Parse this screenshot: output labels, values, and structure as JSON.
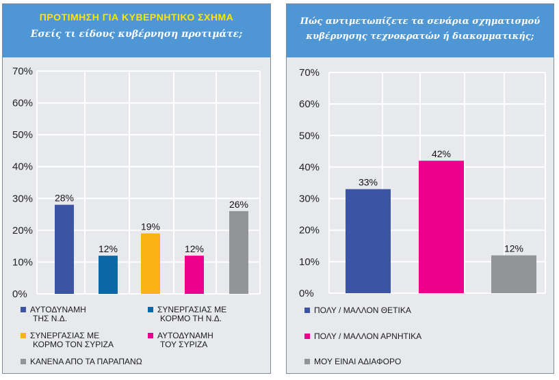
{
  "chart_data": [
    {
      "type": "bar",
      "title": "ΠΡΟΤΙΜΗΣΗ ΓΙΑ ΚΥΒΕΡΝΗΤΙΚΟ ΣΧΗΜΑ",
      "subtitle": "Εσείς τι είδους κυβέρνηση προτιμάτε;",
      "yticks": [
        "0%",
        "10%",
        "20%",
        "30%",
        "40%",
        "50%",
        "60%",
        "70%"
      ],
      "ylim": [
        0,
        70
      ],
      "grid": true,
      "legend": "bottom",
      "categories": [
        {
          "line1": "ΑΥΤΟΔΥΝΑΜΗ",
          "line2": "ΤΗΣ Ν.Δ."
        },
        {
          "line1": "ΣΥΝΕΡΓΑΣΙΑΣ ΜΕ",
          "line2": "ΚΟΡΜΟ ΤΗ Ν.Δ."
        },
        {
          "line1": "ΣΥΝΕΡΓΑΣΙΑΣ ΜΕ",
          "line2": "ΚΟΡΜΟ ΤΟΝ ΣΥΡΙΖΑ"
        },
        {
          "line1": "ΑΥΤΟΔΥΝΑΜΗ",
          "line2": "ΤΟΥ ΣΥΡΙΖΑ"
        },
        {
          "line1": "ΚΑΝΕΝΑ ΑΠΟ ΤΑ ΠΑΡΑΠΑΝΩ",
          "line2": ""
        }
      ],
      "values": [
        28,
        12,
        19,
        12,
        26
      ],
      "value_labels": [
        "28%",
        "12%",
        "19%",
        "12%",
        "26%"
      ],
      "colors": [
        "#3b55a4",
        "#0c67a6",
        "#fbb217",
        "#ec008c",
        "#929497"
      ]
    },
    {
      "type": "bar",
      "title_line1": "Πώς αντιμετωπίζετε τα σενάρια σχηματισμού",
      "title_line2": "κυβέρνησης τεχνοκρατών ή διακομματικής;",
      "yticks": [
        "0%",
        "10%",
        "20%",
        "30%",
        "40%",
        "50%",
        "60%",
        "70%"
      ],
      "ylim": [
        0,
        70
      ],
      "grid": true,
      "legend": "bottom",
      "categories": [
        {
          "line1": "ΠΟΛΥ / ΜΑΛΛΟΝ ΘΕΤΙΚΑ"
        },
        {
          "line1": "ΠΟΛΥ / ΜΑΛΛΟΝ ΑΡΝΗΤΙΚΑ"
        },
        {
          "line1": "ΜΟΥ ΕΙΝΑΙ ΑΔΙΑΦΟΡΟ"
        }
      ],
      "values": [
        33,
        42,
        12
      ],
      "value_labels": [
        "33%",
        "42%",
        "12%"
      ],
      "colors": [
        "#3b55a4",
        "#ec008c",
        "#929497"
      ]
    }
  ]
}
